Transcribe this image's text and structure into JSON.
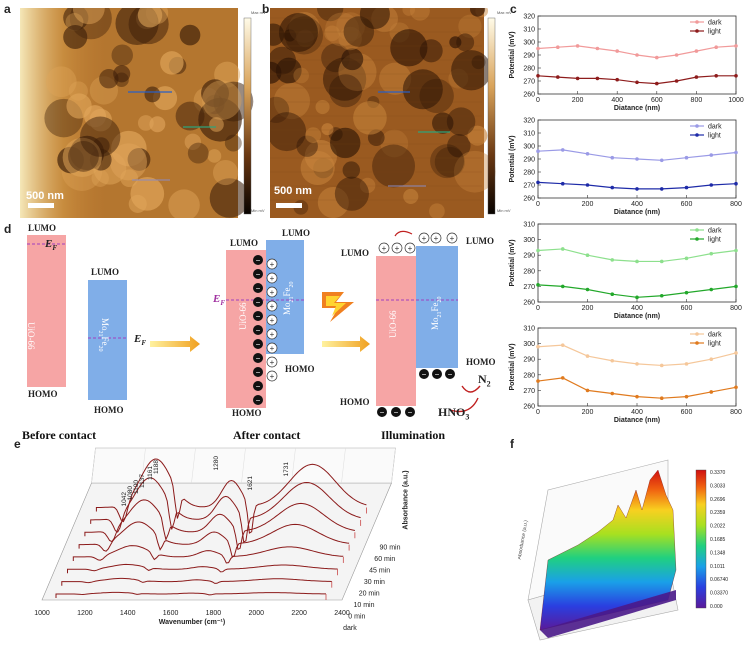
{
  "panels": {
    "a": "a",
    "b": "b",
    "c": "c",
    "d": "d",
    "e": "e",
    "f": "f"
  },
  "afm": {
    "scale_bar_a": "500 nm",
    "scale_bar_b": "500 nm",
    "colorbar_top_a": "Max mV",
    "colorbar_bottom_a": "Min mV",
    "colorbar_top_b": "Max mV",
    "colorbar_bottom_b": "Min mV"
  },
  "kpfm_charts": [
    {
      "type": "line",
      "xlabel": "Diatance (nm)",
      "ylabel": "Potential (mV)",
      "xlim": [
        0,
        1000
      ],
      "ylim": [
        260,
        320
      ],
      "xticks": [
        0,
        200,
        400,
        600,
        800,
        1000
      ],
      "yticks": [
        260,
        270,
        280,
        290,
        300,
        310,
        320
      ],
      "colors": {
        "dark": "#f19a9a",
        "light": "#8e1c1c"
      },
      "series": [
        {
          "name": "dark",
          "x": [
            0,
            100,
            200,
            300,
            400,
            500,
            600,
            700,
            800,
            900,
            1000
          ],
          "values": [
            295,
            296,
            297,
            295,
            293,
            290,
            288,
            290,
            293,
            296,
            297
          ]
        },
        {
          "name": "light",
          "x": [
            0,
            100,
            200,
            300,
            400,
            500,
            600,
            700,
            800,
            900,
            1000
          ],
          "values": [
            274,
            273,
            272,
            272,
            271,
            269,
            268,
            270,
            273,
            274,
            274
          ]
        }
      ]
    },
    {
      "type": "line",
      "xlabel": "Diatance (nm)",
      "ylabel": "Potential (mV)",
      "xlim": [
        0,
        800
      ],
      "ylim": [
        260,
        320
      ],
      "xticks": [
        0,
        200,
        400,
        600,
        800
      ],
      "yticks": [
        260,
        270,
        280,
        290,
        300,
        310,
        320
      ],
      "colors": {
        "dark": "#9a9ae6",
        "light": "#1e2ba8"
      },
      "series": [
        {
          "name": "dark",
          "x": [
            0,
            100,
            200,
            300,
            400,
            500,
            600,
            700,
            800
          ],
          "values": [
            296,
            297,
            294,
            291,
            290,
            289,
            291,
            293,
            295
          ]
        },
        {
          "name": "light",
          "x": [
            0,
            100,
            200,
            300,
            400,
            500,
            600,
            700,
            800
          ],
          "values": [
            272,
            271,
            270,
            268,
            267,
            267,
            268,
            270,
            271
          ]
        }
      ]
    },
    {
      "type": "line",
      "xlabel": "Diatance (nm)",
      "ylabel": "Potential (mV)",
      "xlim": [
        0,
        800
      ],
      "ylim": [
        260,
        310
      ],
      "xticks": [
        0,
        200,
        400,
        600,
        800
      ],
      "yticks": [
        260,
        270,
        280,
        290,
        300,
        310
      ],
      "colors": {
        "dark": "#8de08d",
        "light": "#22a82a"
      },
      "series": [
        {
          "name": "dark",
          "x": [
            0,
            100,
            200,
            300,
            400,
            500,
            600,
            700,
            800
          ],
          "values": [
            293,
            294,
            290,
            287,
            286,
            286,
            288,
            291,
            293
          ]
        },
        {
          "name": "light",
          "x": [
            0,
            100,
            200,
            300,
            400,
            500,
            600,
            700,
            800
          ],
          "values": [
            271,
            270,
            268,
            265,
            263,
            264,
            266,
            268,
            270
          ]
        }
      ]
    },
    {
      "type": "line",
      "xlabel": "Diatance (nm)",
      "ylabel": "Potential (mV)",
      "xlim": [
        0,
        800
      ],
      "ylim": [
        260,
        310
      ],
      "xticks": [
        0,
        200,
        400,
        600,
        800
      ],
      "yticks": [
        260,
        270,
        280,
        290,
        300,
        310
      ],
      "colors": {
        "dark": "#f5c79a",
        "light": "#e07a1e"
      },
      "series": [
        {
          "name": "dark",
          "x": [
            0,
            100,
            200,
            300,
            400,
            500,
            600,
            700,
            800
          ],
          "values": [
            298,
            299,
            292,
            289,
            287,
            286,
            287,
            290,
            294
          ]
        },
        {
          "name": "light",
          "x": [
            0,
            100,
            200,
            300,
            400,
            500,
            600,
            700,
            800
          ],
          "values": [
            276,
            278,
            270,
            268,
            266,
            265,
            266,
            269,
            272
          ]
        }
      ]
    }
  ],
  "schematic": {
    "lumo": "LUMO",
    "homo": "HOMO",
    "ef": "E",
    "ef_sub": "F",
    "uio": "UiO-66",
    "mof": "Mo",
    "mof_sub1": "21",
    "mof_mid": "Fe",
    "mof_sub2": "20",
    "before": "Before contact",
    "after": "After contact",
    "illum": "Illumination",
    "n2": "N",
    "n2_sub": "2",
    "hno3": "HNO",
    "hno3_sub": "3",
    "electron": "−",
    "hole": "+",
    "colors": {
      "uio": "#f6a5a5",
      "mof": "#80aee8"
    }
  },
  "chart_data": {
    "type": "area",
    "title": "",
    "xlabel": "Wavenumber (cm⁻¹)",
    "ylabel": "Absorbance (a.u.)",
    "xlim": [
      1000,
      2400
    ],
    "xticks": [
      1000,
      1200,
      1400,
      1600,
      1800,
      2000,
      2200,
      2400
    ],
    "peaks": [
      "1042",
      "1080",
      "1100",
      "1137",
      "1161",
      "1188",
      "1280",
      "1621",
      "1731"
    ],
    "series": [
      {
        "name": "dark"
      },
      {
        "name": "0 min"
      },
      {
        "name": "10 min"
      },
      {
        "name": "20 min"
      },
      {
        "name": "30 min"
      },
      {
        "name": "45 min"
      },
      {
        "name": "60 min"
      },
      {
        "name": "90 min"
      }
    ],
    "colors": {
      "curve": "#8b1a1a",
      "edge": "#c94848"
    }
  },
  "surface": {
    "z_label": "Absorbance (a.u.)",
    "colorbar": [
      "0.3370",
      "0.3033",
      "0.2696",
      "0.2359",
      "0.2022",
      "0.1685",
      "0.1348",
      "0.1011",
      "0.06740",
      "0.03370",
      "0.000"
    ]
  }
}
